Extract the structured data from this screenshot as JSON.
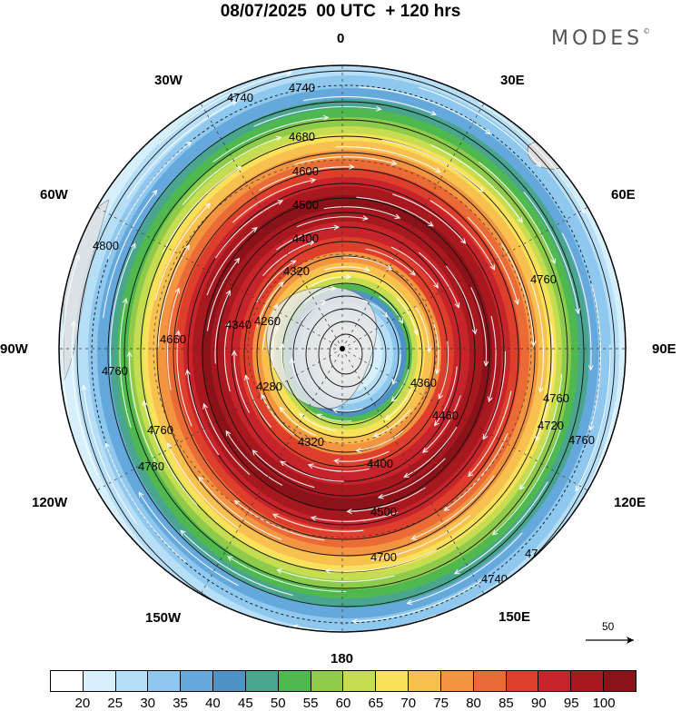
{
  "title": "08/07/2025  00 UTC  + 120 hrs",
  "logo": "MODES",
  "logo_mark": "©",
  "longitude_labels": [
    "0",
    "30E",
    "60E",
    "90E",
    "120E",
    "150E",
    "180",
    "150W",
    "120W",
    "90W",
    "60W",
    "30W"
  ],
  "contour_labels": [
    "4740",
    "4740",
    "4680",
    "4600",
    "4500",
    "4400",
    "4320",
    "4260",
    "4280",
    "4340",
    "4320",
    "4360",
    "4460",
    "4400",
    "4500",
    "4760",
    "4760",
    "4720",
    "4760",
    "4760",
    "4740",
    "4700",
    "4740",
    "4760",
    "4780",
    "4760",
    "4800",
    "4660"
  ],
  "vector_reference": {
    "value": "50"
  },
  "colorbar": {
    "ticks": [
      "20",
      "25",
      "30",
      "35",
      "40",
      "45",
      "50",
      "55",
      "60",
      "65",
      "70",
      "75",
      "80",
      "85",
      "90",
      "95",
      "100"
    ],
    "colors": [
      "#ffffff",
      "#d6effa",
      "#b6def6",
      "#8fc8ee",
      "#65a9dc",
      "#4f92c6",
      "#4aa58f",
      "#4fb84e",
      "#8fcb4b",
      "#c6dd52",
      "#f9e25a",
      "#f8c04f",
      "#f39540",
      "#ea6b35",
      "#de3f2c",
      "#c6242a",
      "#a8181f",
      "#8b1219"
    ]
  },
  "colors": {
    "land": "#dddddd",
    "coast": "#666666",
    "contour": "#111111",
    "streamline": "#ffffff"
  }
}
